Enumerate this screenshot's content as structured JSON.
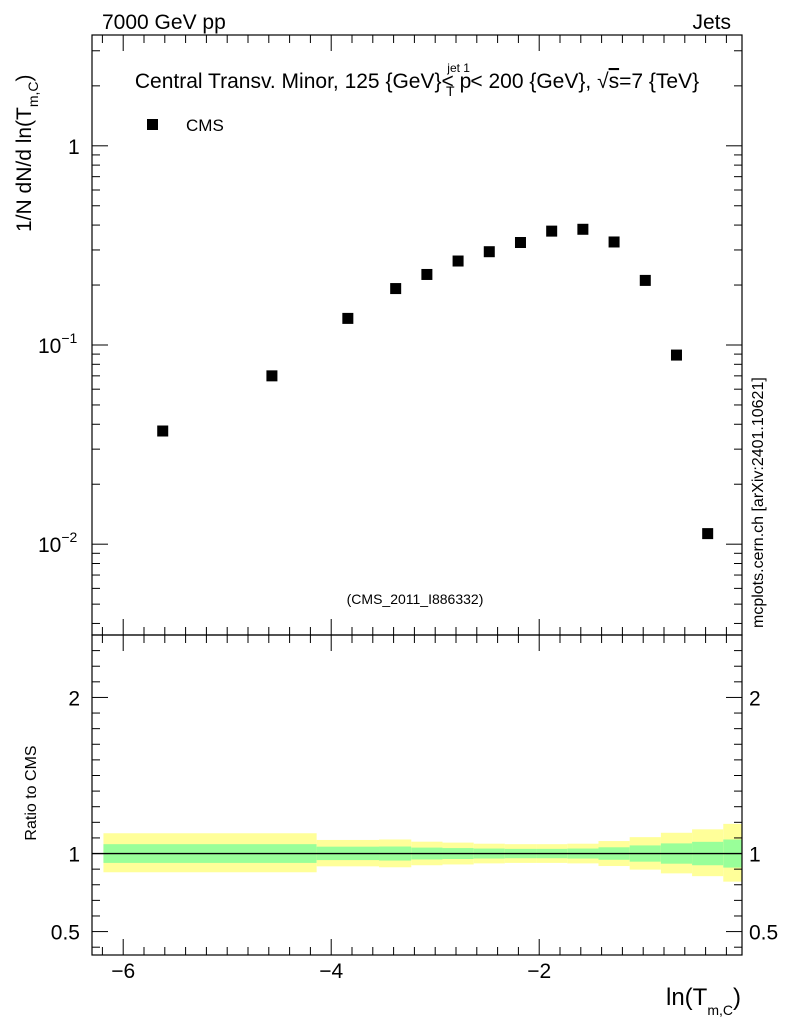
{
  "header": {
    "left_label": "7000 GeV pp",
    "right_label": "Jets"
  },
  "watermark": "mcplots.cern.ch [arXiv:2401.10621]",
  "analysis_id": "(CMS_2011_I886332)",
  "colors": {
    "band_inner": "#99ff99",
    "band_outer": "#ffff99",
    "marker": "#000000",
    "analysis_text": "#999999"
  },
  "chart_data": [
    {
      "type": "scatter",
      "panel": "main",
      "title": {
        "part1": "Central Transv. Minor, 125 {GeV}< p",
        "sup": "jet 1",
        "sub": "T",
        "part2": " < 200 {GeV}, ",
        "sqrt": "√",
        "s_text": "s",
        "part3": "=7 {TeV}"
      },
      "ylabel": {
        "pre": "1/N    dN/d ln(T",
        "sub": "m,C",
        "post": ")"
      },
      "yscale": "log",
      "ylim": [
        0.0035,
        3.6
      ],
      "xlim": [
        -6.3,
        -0.05
      ],
      "yticks": [
        {
          "value": 1,
          "label": "1"
        },
        {
          "value": 0.1,
          "label": "10",
          "exp": "−1"
        },
        {
          "value": 0.01,
          "label": "10",
          "exp": "−2"
        }
      ],
      "legend": {
        "position": "top-left",
        "entries": [
          "CMS"
        ]
      },
      "series": [
        {
          "name": "CMS",
          "x": [
            -5.62,
            -4.57,
            -3.84,
            -3.38,
            -3.08,
            -2.78,
            -2.48,
            -2.18,
            -1.88,
            -1.58,
            -1.28,
            -0.98,
            -0.68,
            -0.38
          ],
          "y": [
            0.037,
            0.07,
            0.136,
            0.192,
            0.226,
            0.264,
            0.294,
            0.327,
            0.373,
            0.381,
            0.329,
            0.211,
            0.089,
            0.0113
          ]
        }
      ]
    },
    {
      "type": "area",
      "panel": "ratio",
      "ylabel": "Ratio to CMS",
      "xlabel": {
        "pre": "ln(T",
        "sub": "m,C",
        "post": ")"
      },
      "ylim": [
        0.35,
        2.4
      ],
      "xlim": [
        -6.3,
        -0.05
      ],
      "xticks": [
        {
          "value": -6,
          "label": "−6"
        },
        {
          "value": -4,
          "label": "−4"
        },
        {
          "value": -2,
          "label": "−2"
        }
      ],
      "yticks": [
        {
          "value": 0.5,
          "label": "0.5"
        },
        {
          "value": 1,
          "label": "1"
        },
        {
          "value": 2,
          "label": "2"
        }
      ],
      "reference_line": 1.0,
      "bins": [
        {
          "lo": -6.19,
          "hi": -4.14,
          "inner": [
            0.94,
            1.06
          ],
          "outer": [
            0.88,
            1.13
          ]
        },
        {
          "lo": -4.14,
          "hi": -3.54,
          "inner": [
            0.958,
            1.044
          ],
          "outer": [
            0.918,
            1.087
          ]
        },
        {
          "lo": -3.54,
          "hi": -3.23,
          "inner": [
            0.955,
            1.045
          ],
          "outer": [
            0.912,
            1.09
          ]
        },
        {
          "lo": -3.23,
          "hi": -2.93,
          "inner": [
            0.962,
            1.038
          ],
          "outer": [
            0.925,
            1.076
          ]
        },
        {
          "lo": -2.93,
          "hi": -2.63,
          "inner": [
            0.965,
            1.035
          ],
          "outer": [
            0.93,
            1.07
          ]
        },
        {
          "lo": -2.63,
          "hi": -2.33,
          "inner": [
            0.968,
            1.032
          ],
          "outer": [
            0.937,
            1.063
          ]
        },
        {
          "lo": -2.33,
          "hi": -2.03,
          "inner": [
            0.97,
            1.03
          ],
          "outer": [
            0.94,
            1.06
          ]
        },
        {
          "lo": -2.03,
          "hi": -1.73,
          "inner": [
            0.97,
            1.03
          ],
          "outer": [
            0.94,
            1.06
          ]
        },
        {
          "lo": -1.73,
          "hi": -1.43,
          "inner": [
            0.968,
            1.032
          ],
          "outer": [
            0.937,
            1.063
          ]
        },
        {
          "lo": -1.43,
          "hi": -1.13,
          "inner": [
            0.96,
            1.04
          ],
          "outer": [
            0.92,
            1.08
          ]
        },
        {
          "lo": -1.13,
          "hi": -0.83,
          "inner": [
            0.948,
            1.052
          ],
          "outer": [
            0.897,
            1.105
          ]
        },
        {
          "lo": -0.83,
          "hi": -0.53,
          "inner": [
            0.935,
            1.065
          ],
          "outer": [
            0.873,
            1.133
          ]
        },
        {
          "lo": -0.53,
          "hi": -0.23,
          "inner": [
            0.925,
            1.075
          ],
          "outer": [
            0.855,
            1.155
          ]
        },
        {
          "lo": -0.23,
          "hi": 0.07,
          "inner": [
            0.91,
            1.09
          ],
          "outer": [
            0.82,
            1.19
          ]
        }
      ]
    }
  ]
}
